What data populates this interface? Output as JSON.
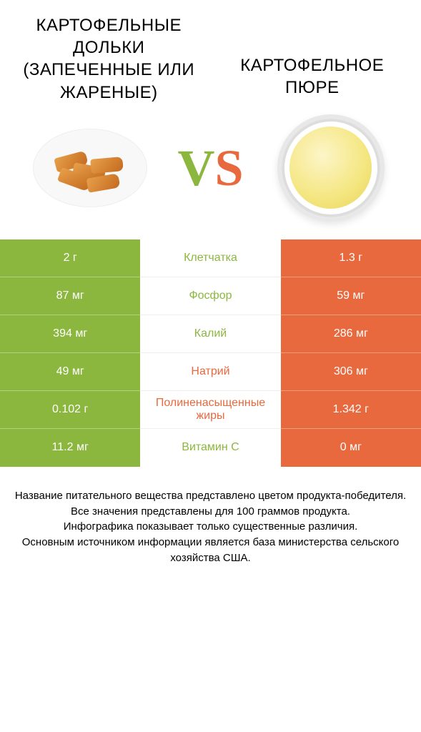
{
  "colors": {
    "green": "#8cb73f",
    "orange": "#e8693e",
    "left_bg": "#8cb73f",
    "right_bg": "#e8693e",
    "white": "#ffffff"
  },
  "header": {
    "left_title": "Картофельные дольки (запеченные или жареные)",
    "right_title": "Картофельное пюре"
  },
  "vs": {
    "v": "V",
    "s": "S"
  },
  "rows": [
    {
      "left": "2 г",
      "label": "Клетчатка",
      "right": "1.3 г",
      "winner": "left"
    },
    {
      "left": "87 мг",
      "label": "Фосфор",
      "right": "59 мг",
      "winner": "left"
    },
    {
      "left": "394 мг",
      "label": "Калий",
      "right": "286 мг",
      "winner": "left"
    },
    {
      "left": "49 мг",
      "label": "Натрий",
      "right": "306 мг",
      "winner": "right"
    },
    {
      "left": "0.102 г",
      "label": "Полиненасыщенные жиры",
      "right": "1.342 г",
      "winner": "right"
    },
    {
      "left": "11.2 мг",
      "label": "Витамин C",
      "right": "0 мг",
      "winner": "left"
    }
  ],
  "footer": {
    "line1": "Название питательного вещества представлено цветом продукта-победителя.",
    "line2": "Все значения представлены для 100 граммов продукта.",
    "line3": "Инфографика показывает только существенные различия.",
    "line4": "Основным источником информации является база министерства сельского хозяйства США."
  }
}
